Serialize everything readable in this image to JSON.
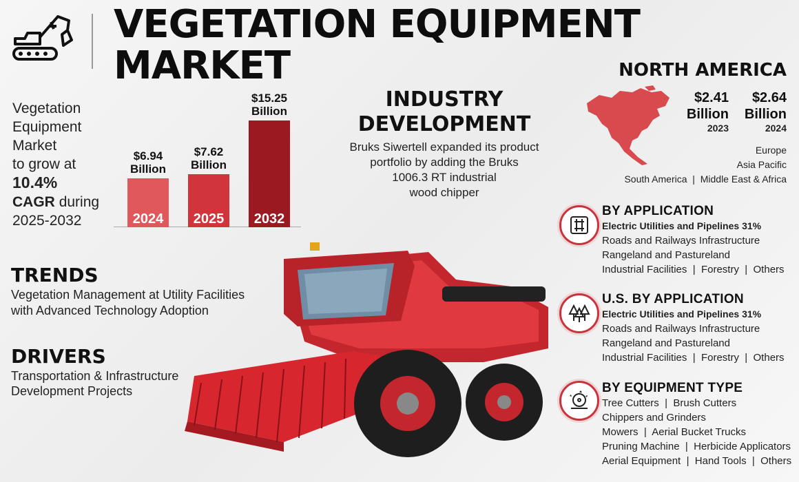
{
  "header": {
    "icon": "excavator-icon",
    "title_line1": "VEGETATION EQUIPMENT",
    "title_line2": "MARKET"
  },
  "growth": {
    "line1": "Vegetation",
    "line2": "Equipment",
    "line3": "Market",
    "line4": "to grow at",
    "rate": "10.4%",
    "cagr": "CAGR",
    "during": "during",
    "period": "2025-2032"
  },
  "chart_data": {
    "type": "bar",
    "categories": [
      "2024",
      "2025",
      "2032"
    ],
    "values": [
      6.94,
      7.62,
      15.25
    ],
    "value_labels": [
      [
        "$6.94",
        "Billion"
      ],
      [
        "$7.62",
        "Billion"
      ],
      [
        "$15.25",
        "Billion"
      ]
    ],
    "colors": [
      "#e0585c",
      "#d1343a",
      "#9b1a22"
    ]
  },
  "industry": {
    "heading_line1": "INDUSTRY",
    "heading_line2": "DEVELOPMENT",
    "lines": [
      "Bruks Siwertell expanded its product",
      "portfolio by adding the Bruks",
      "1006.3 RT industrial",
      "wood chipper"
    ]
  },
  "north_america": {
    "heading": "NORTH AMERICA",
    "map_icon": "north-america-map-icon",
    "stats": [
      {
        "value": "$2.41",
        "unit": "Billion",
        "year": "2023"
      },
      {
        "value": "$2.64",
        "unit": "Billion",
        "year": "2024"
      }
    ],
    "regions": [
      "Europe",
      "Asia Pacific",
      "South America",
      "Middle East & Africa"
    ],
    "separator": "|"
  },
  "trends": {
    "heading": "TRENDS",
    "lines": [
      "Vegetation Management at Utility Facilities",
      "with Advanced Technology Adoption"
    ]
  },
  "drivers": {
    "heading": "DRIVERS",
    "lines": [
      "Transportation & Infrastructure",
      "Development Projects"
    ]
  },
  "segments": [
    {
      "icon": "pipeline-icon",
      "heading": "BY APPLICATION",
      "lead": "Electric Utilities and Pipelines 31%",
      "lines": [
        "Roads and Railways Infrastructure",
        "Rangeland and Pastureland",
        "Industrial Facilities  |  Forestry  |  Others"
      ]
    },
    {
      "icon": "trees-icon",
      "heading": "U.S. BY APPLICATION",
      "lead": "Electric Utilities and Pipelines 31%",
      "lines": [
        "Roads and Railways Infrastructure",
        "Rangeland and Pastureland",
        "Industrial Facilities  |  Forestry  |  Others"
      ]
    },
    {
      "icon": "saw-blade-icon",
      "heading": "BY EQUIPMENT TYPE",
      "lead": "",
      "lines": [
        "Tree Cutters  |  Brush Cutters",
        "Chippers and Grinders",
        "Mowers  |  Aerial Bucket Trucks",
        "Pruning Machine  |  Herbicide Applicators",
        "Aerial Equipment  |  Hand Tools  |  Others"
      ]
    }
  ],
  "image": {
    "icon": "combine-harvester-icon"
  }
}
